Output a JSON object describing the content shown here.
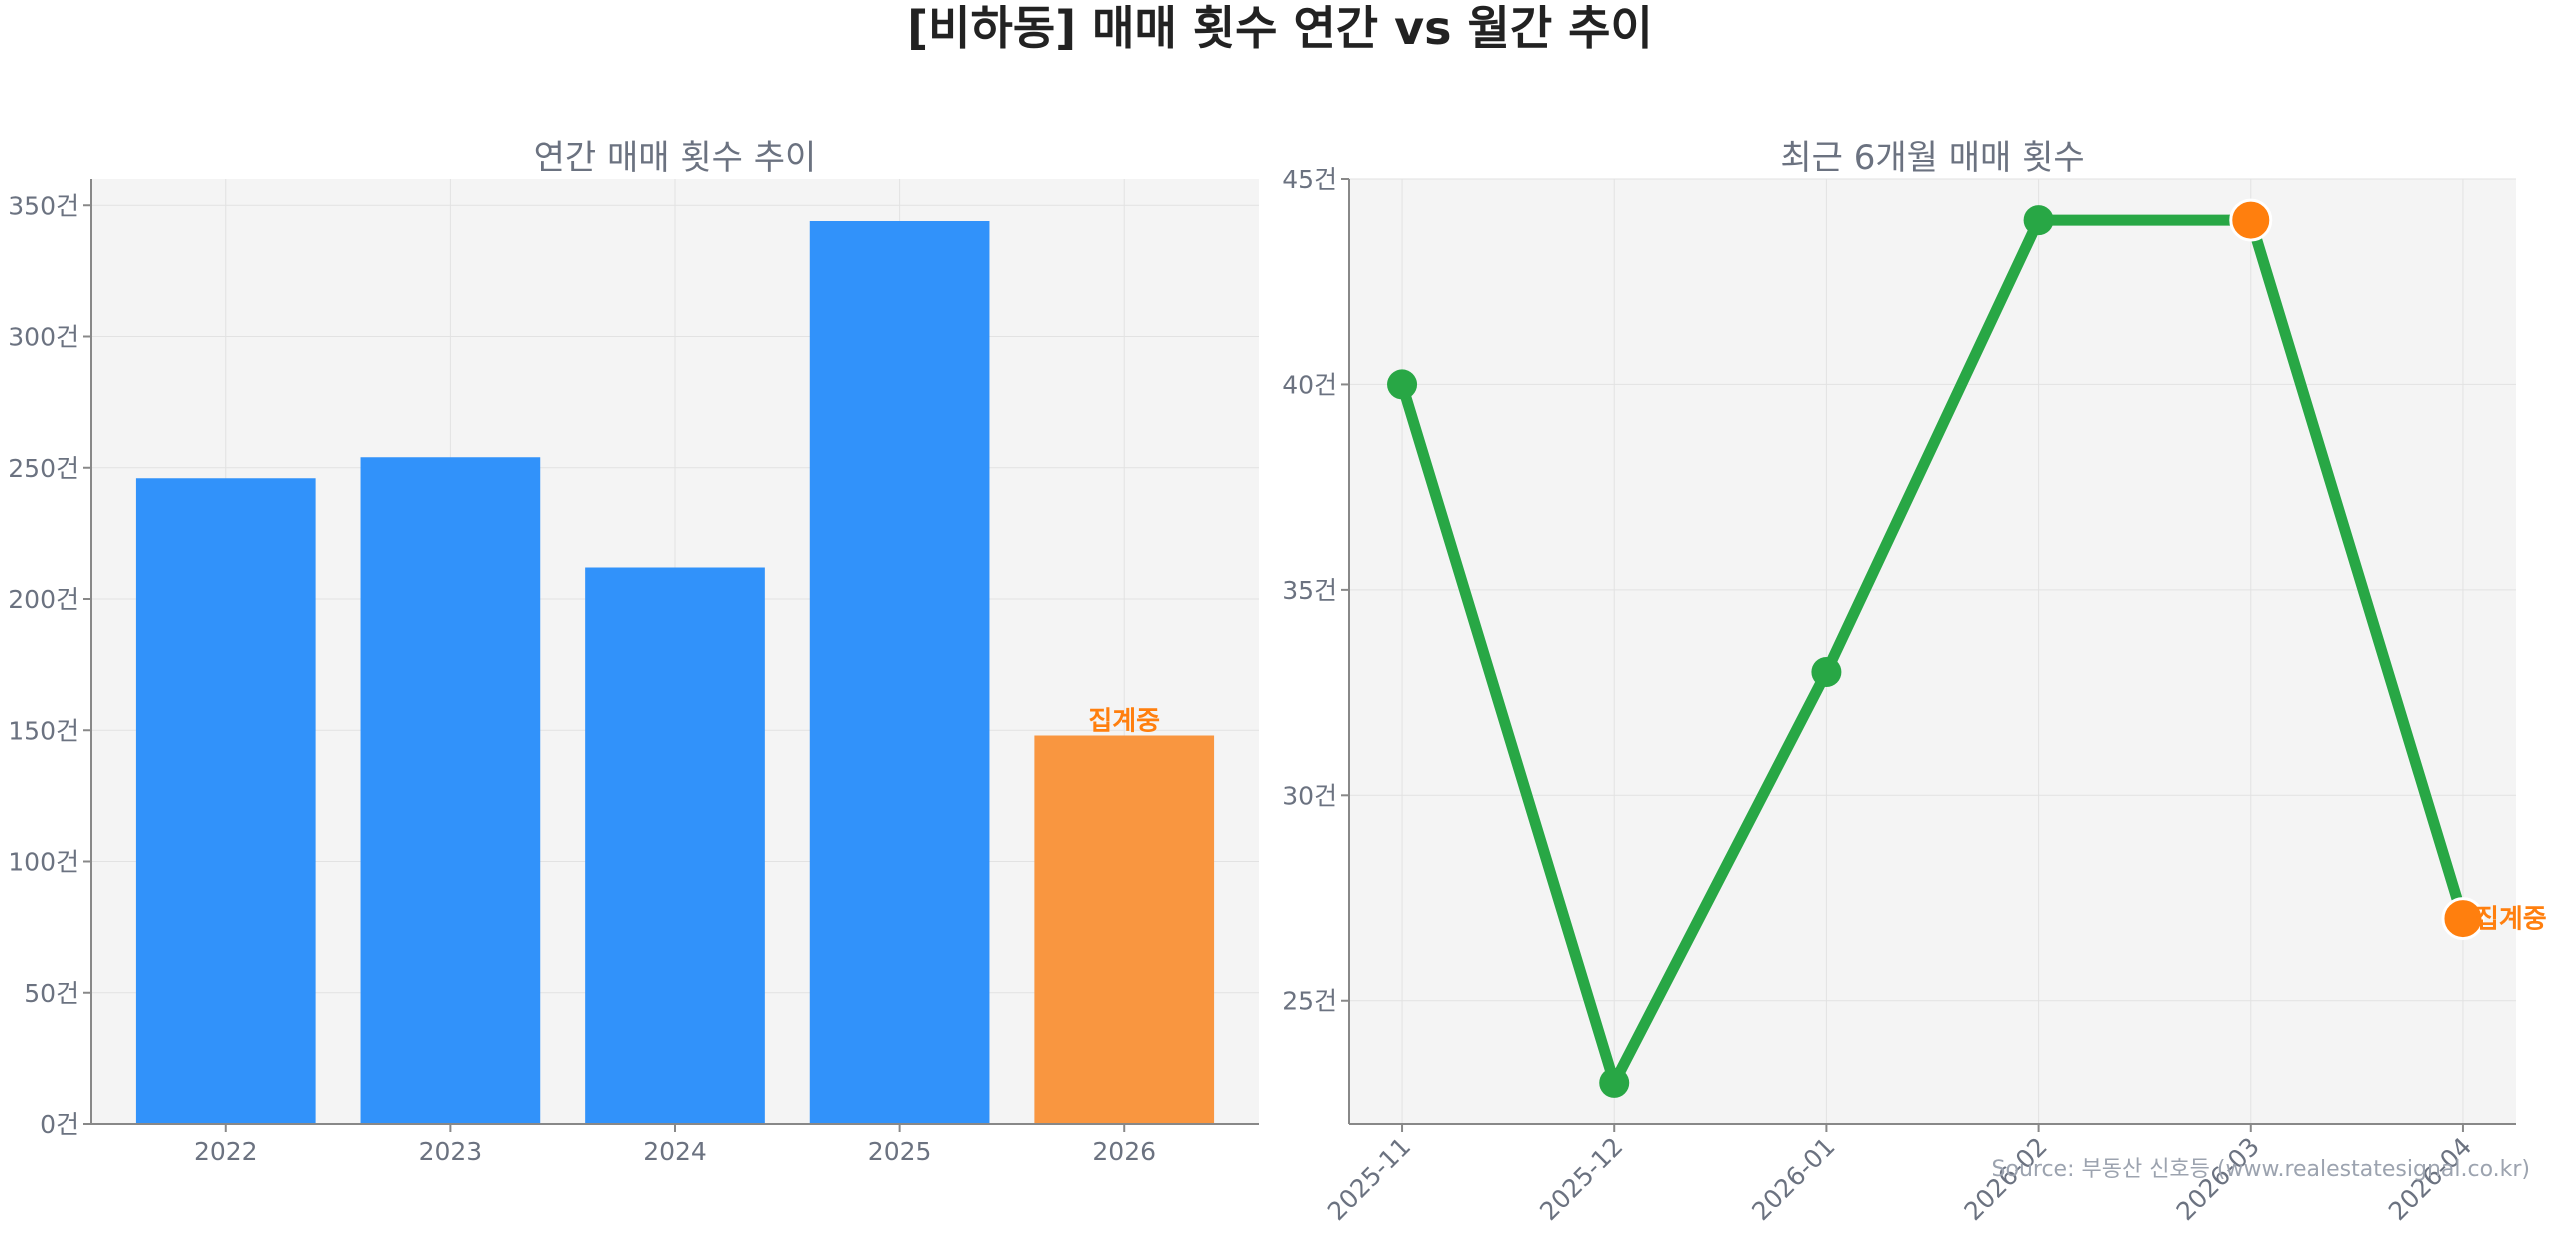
{
  "title": "[비하동] 매매 횟수 연간 vs 월간 추이",
  "source": "Source: 부동산 신호등 (www.realestatesignal.co.kr)",
  "chart_data": [
    {
      "type": "bar",
      "title": "연간 매매 횟수 추이",
      "categories": [
        "2022",
        "2023",
        "2024",
        "2025",
        "2026"
      ],
      "values": [
        246,
        254,
        212,
        344,
        148
      ],
      "ylim": [
        0,
        360
      ],
      "yticks": [
        0,
        50,
        100,
        150,
        200,
        250,
        300,
        350
      ],
      "ytick_labels": [
        "0건",
        "50건",
        "100건",
        "150건",
        "200건",
        "250건",
        "300건",
        "350건"
      ],
      "pending_label": "집계중",
      "grid": true,
      "colors": {
        "bar": "#3192fa",
        "pending_bar": "#f99640",
        "pending_text": "#ff7f0e"
      }
    },
    {
      "type": "line",
      "title": "최근 6개월 매매 횟수",
      "x": [
        "2025-11",
        "2025-12",
        "2026-01",
        "2026-02",
        "2026-03",
        "2026-04"
      ],
      "values": [
        40,
        23,
        33,
        44,
        44,
        27
      ],
      "highlighted": [
        false,
        false,
        false,
        false,
        true,
        true
      ],
      "ylim": [
        22,
        45
      ],
      "yticks": [
        25,
        30,
        35,
        40,
        45
      ],
      "ytick_labels": [
        "25건",
        "30건",
        "35건",
        "40건",
        "45건"
      ],
      "pending_label": "집계중",
      "grid": true,
      "colors": {
        "line": "#28a745",
        "highlight": "#ff7f0e",
        "pending_text": "#ff7f0e"
      }
    }
  ]
}
